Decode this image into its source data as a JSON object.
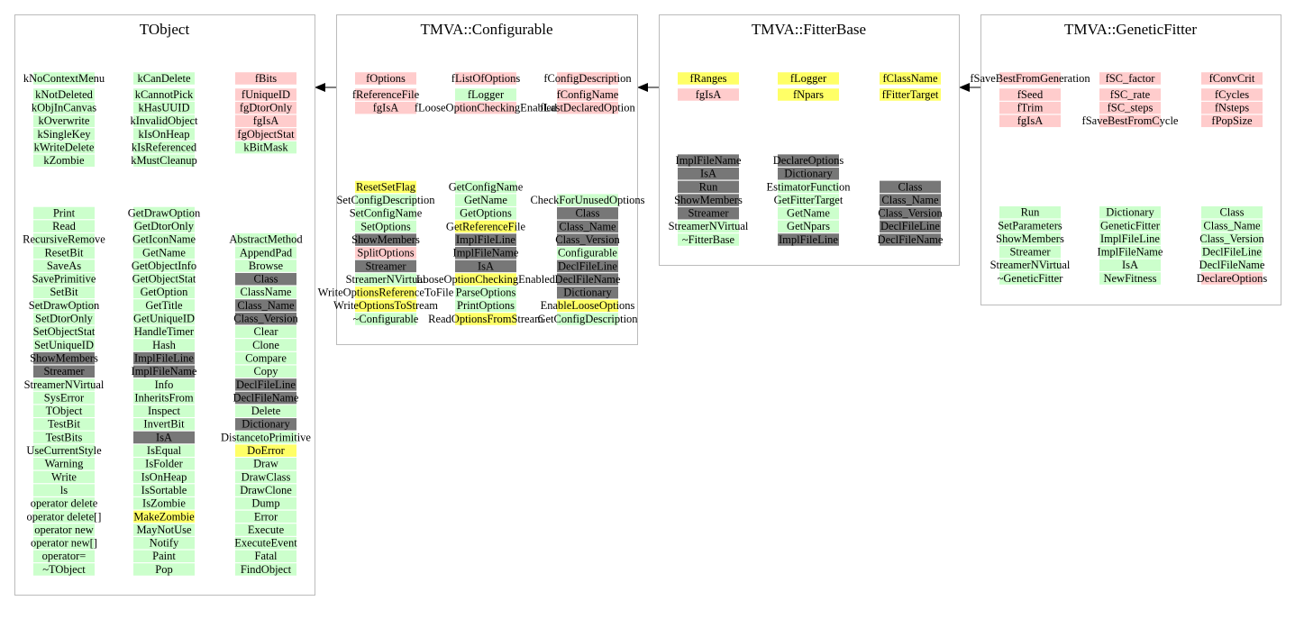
{
  "classes": [
    {
      "title": "TObject",
      "members": [
        [
          {
            "label": "kNoContextMenu",
            "color": "#ccffcc"
          },
          {
            "label": "kNotDeleted",
            "color": "#ccffcc"
          },
          {
            "label": "kObjInCanvas",
            "color": "#ccffcc"
          },
          {
            "label": "kOverwrite",
            "color": "#ccffcc"
          },
          {
            "label": "kSingleKey",
            "color": "#ccffcc"
          },
          {
            "label": "kWriteDelete",
            "color": "#ccffcc"
          },
          {
            "label": "kZombie",
            "color": "#ccffcc"
          }
        ],
        [
          {
            "label": "kCanDelete",
            "color": "#ccffcc"
          },
          {
            "label": "kCannotPick",
            "color": "#ccffcc"
          },
          {
            "label": "kHasUUID",
            "color": "#ccffcc"
          },
          {
            "label": "kInvalidObject",
            "color": "#ccffcc"
          },
          {
            "label": "kIsOnHeap",
            "color": "#ccffcc"
          },
          {
            "label": "kIsReferenced",
            "color": "#ccffcc"
          },
          {
            "label": "kMustCleanup",
            "color": "#ccffcc"
          }
        ],
        [
          {
            "label": "fBits",
            "color": "#ffcccc"
          },
          {
            "label": "fUniqueID",
            "color": "#ffcccc"
          },
          {
            "label": "fgDtorOnly",
            "color": "#ffcccc"
          },
          {
            "label": "fgIsA",
            "color": "#ffcccc"
          },
          {
            "label": "fgObjectStat",
            "color": "#ffcccc"
          },
          {
            "label": "kBitMask",
            "color": "#ccffcc"
          }
        ]
      ],
      "methods": [
        [
          {
            "label": "Print",
            "color": "#ccffcc"
          },
          {
            "label": "Read",
            "color": "#ccffcc"
          },
          {
            "label": "RecursiveRemove",
            "color": "#ccffcc"
          },
          {
            "label": "ResetBit",
            "color": "#ccffcc"
          },
          {
            "label": "SaveAs",
            "color": "#ccffcc"
          },
          {
            "label": "SavePrimitive",
            "color": "#ccffcc"
          },
          {
            "label": "SetBit",
            "color": "#ccffcc"
          },
          {
            "label": "SetDrawOption",
            "color": "#ccffcc"
          },
          {
            "label": "SetDtorOnly",
            "color": "#ccffcc"
          },
          {
            "label": "SetObjectStat",
            "color": "#ccffcc"
          },
          {
            "label": "SetUniqueID",
            "color": "#ccffcc"
          },
          {
            "label": "ShowMembers",
            "color": "#777777"
          },
          {
            "label": "Streamer",
            "color": "#777777"
          },
          {
            "label": "StreamerNVirtual",
            "color": "#ccffcc"
          },
          {
            "label": "SysError",
            "color": "#ccffcc"
          },
          {
            "label": "TObject",
            "color": "#ccffcc"
          },
          {
            "label": "TestBit",
            "color": "#ccffcc"
          },
          {
            "label": "TestBits",
            "color": "#ccffcc"
          },
          {
            "label": "UseCurrentStyle",
            "color": "#ccffcc"
          },
          {
            "label": "Warning",
            "color": "#ccffcc"
          },
          {
            "label": "Write",
            "color": "#ccffcc"
          },
          {
            "label": "ls",
            "color": "#ccffcc"
          },
          {
            "label": "operator delete",
            "color": "#ccffcc"
          },
          {
            "label": "operator delete[]",
            "color": "#ccffcc"
          },
          {
            "label": "operator new",
            "color": "#ccffcc"
          },
          {
            "label": "operator new[]",
            "color": "#ccffcc"
          },
          {
            "label": "operator=",
            "color": "#ccffcc"
          },
          {
            "label": "~TObject",
            "color": "#ccffcc"
          }
        ],
        [
          {
            "label": "GetDrawOption",
            "color": "#ccffcc"
          },
          {
            "label": "GetDtorOnly",
            "color": "#ccffcc"
          },
          {
            "label": "GetIconName",
            "color": "#ccffcc"
          },
          {
            "label": "GetName",
            "color": "#ccffcc"
          },
          {
            "label": "GetObjectInfo",
            "color": "#ccffcc"
          },
          {
            "label": "GetObjectStat",
            "color": "#ccffcc"
          },
          {
            "label": "GetOption",
            "color": "#ccffcc"
          },
          {
            "label": "GetTitle",
            "color": "#ccffcc"
          },
          {
            "label": "GetUniqueID",
            "color": "#ccffcc"
          },
          {
            "label": "HandleTimer",
            "color": "#ccffcc"
          },
          {
            "label": "Hash",
            "color": "#ccffcc"
          },
          {
            "label": "ImplFileLine",
            "color": "#777777"
          },
          {
            "label": "ImplFileName",
            "color": "#777777"
          },
          {
            "label": "Info",
            "color": "#ccffcc"
          },
          {
            "label": "InheritsFrom",
            "color": "#ccffcc"
          },
          {
            "label": "Inspect",
            "color": "#ccffcc"
          },
          {
            "label": "InvertBit",
            "color": "#ccffcc"
          },
          {
            "label": "IsA",
            "color": "#777777"
          },
          {
            "label": "IsEqual",
            "color": "#ccffcc"
          },
          {
            "label": "IsFolder",
            "color": "#ccffcc"
          },
          {
            "label": "IsOnHeap",
            "color": "#ccffcc"
          },
          {
            "label": "IsSortable",
            "color": "#ccffcc"
          },
          {
            "label": "IsZombie",
            "color": "#ccffcc"
          },
          {
            "label": "MakeZombie",
            "color": "#ffff66"
          },
          {
            "label": "MayNotUse",
            "color": "#ccffcc"
          },
          {
            "label": "Notify",
            "color": "#ccffcc"
          },
          {
            "label": "Paint",
            "color": "#ccffcc"
          },
          {
            "label": "Pop",
            "color": "#ccffcc"
          }
        ],
        [
          {
            "label": "AbstractMethod",
            "color": "#ccffcc"
          },
          {
            "label": "AppendPad",
            "color": "#ccffcc"
          },
          {
            "label": "Browse",
            "color": "#ccffcc"
          },
          {
            "label": "Class",
            "color": "#777777"
          },
          {
            "label": "ClassName",
            "color": "#ccffcc"
          },
          {
            "label": "Class_Name",
            "color": "#777777"
          },
          {
            "label": "Class_Version",
            "color": "#777777"
          },
          {
            "label": "Clear",
            "color": "#ccffcc"
          },
          {
            "label": "Clone",
            "color": "#ccffcc"
          },
          {
            "label": "Compare",
            "color": "#ccffcc"
          },
          {
            "label": "Copy",
            "color": "#ccffcc"
          },
          {
            "label": "DeclFileLine",
            "color": "#777777"
          },
          {
            "label": "DeclFileName",
            "color": "#777777"
          },
          {
            "label": "Delete",
            "color": "#ccffcc"
          },
          {
            "label": "Dictionary",
            "color": "#777777"
          },
          {
            "label": "DistancetoPrimitive",
            "color": "#ccffcc"
          },
          {
            "label": "DoError",
            "color": "#ffff66"
          },
          {
            "label": "Draw",
            "color": "#ccffcc"
          },
          {
            "label": "DrawClass",
            "color": "#ccffcc"
          },
          {
            "label": "DrawClone",
            "color": "#ccffcc"
          },
          {
            "label": "Dump",
            "color": "#ccffcc"
          },
          {
            "label": "Error",
            "color": "#ccffcc"
          },
          {
            "label": "Execute",
            "color": "#ccffcc"
          },
          {
            "label": "ExecuteEvent",
            "color": "#ccffcc"
          },
          {
            "label": "Fatal",
            "color": "#ccffcc"
          },
          {
            "label": "FindObject",
            "color": "#ccffcc"
          }
        ]
      ]
    },
    {
      "title": "TMVA::Configurable",
      "members": [
        [
          {
            "label": "fOptions",
            "color": "#ffcccc"
          },
          {
            "label": "fReferenceFile",
            "color": "#ffcccc"
          },
          {
            "label": "fgIsA",
            "color": "#ffcccc"
          }
        ],
        [
          {
            "label": "fListOfOptions",
            "color": "#ffcccc"
          },
          {
            "label": "fLogger",
            "color": "#ccffcc"
          },
          {
            "label": "fLooseOptionCheckingEnabled",
            "color": "#ffcccc"
          }
        ],
        [
          {
            "label": "fConfigDescription",
            "color": "#ffcccc"
          },
          {
            "label": "fConfigName",
            "color": "#ffcccc"
          },
          {
            "label": "fLastDeclaredOption",
            "color": "#ffcccc"
          }
        ]
      ],
      "methods": [
        [
          {
            "label": "ResetSetFlag",
            "color": "#ffff66"
          },
          {
            "label": "SetConfigDescription",
            "color": "#ccffcc"
          },
          {
            "label": "SetConfigName",
            "color": "#ccffcc"
          },
          {
            "label": "SetOptions",
            "color": "#ccffcc"
          },
          {
            "label": "ShowMembers",
            "color": "#777777"
          },
          {
            "label": "SplitOptions",
            "color": "#ffcccc"
          },
          {
            "label": "Streamer",
            "color": "#777777"
          },
          {
            "label": "StreamerNVirtual",
            "color": "#ccffcc"
          },
          {
            "label": "WriteOptionsReferenceToFile",
            "color": "#ffff66"
          },
          {
            "label": "WriteOptionsToStream",
            "color": "#ffff66"
          },
          {
            "label": "~Configurable",
            "color": "#ccffcc"
          }
        ],
        [
          {
            "label": "GetConfigName",
            "color": "#ccffcc"
          },
          {
            "label": "GetName",
            "color": "#ccffcc"
          },
          {
            "label": "GetOptions",
            "color": "#ccffcc"
          },
          {
            "label": "GetReferenceFile",
            "color": "#ffff66"
          },
          {
            "label": "ImplFileLine",
            "color": "#777777"
          },
          {
            "label": "ImplFileName",
            "color": "#777777"
          },
          {
            "label": "IsA",
            "color": "#777777"
          },
          {
            "label": "LooseOptionCheckingEnabled",
            "color": "#ffff66"
          },
          {
            "label": "ParseOptions",
            "color": "#ccffcc"
          },
          {
            "label": "PrintOptions",
            "color": "#ccffcc"
          },
          {
            "label": "ReadOptionsFromStream",
            "color": "#ffff66"
          }
        ],
        [
          {
            "label": "CheckForUnusedOptions",
            "color": "#ccffcc"
          },
          {
            "label": "Class",
            "color": "#777777"
          },
          {
            "label": "Class_Name",
            "color": "#777777"
          },
          {
            "label": "Class_Version",
            "color": "#777777"
          },
          {
            "label": "Configurable",
            "color": "#ccffcc"
          },
          {
            "label": "DeclFileLine",
            "color": "#777777"
          },
          {
            "label": "DeclFileName",
            "color": "#777777"
          },
          {
            "label": "Dictionary",
            "color": "#777777"
          },
          {
            "label": "EnableLooseOptions",
            "color": "#ffff66"
          },
          {
            "label": "GetConfigDescription",
            "color": "#ccffcc"
          }
        ]
      ]
    },
    {
      "title": "TMVA::FitterBase",
      "members": [
        [
          {
            "label": "fRanges",
            "color": "#ffff66"
          },
          {
            "label": "fgIsA",
            "color": "#ffcccc"
          }
        ],
        [
          {
            "label": "fLogger",
            "color": "#ffff66"
          },
          {
            "label": "fNpars",
            "color": "#ffff66"
          }
        ],
        [
          {
            "label": "fClassName",
            "color": "#ffff66"
          },
          {
            "label": "fFitterTarget",
            "color": "#ffff66"
          }
        ]
      ],
      "methods": [
        [
          {
            "label": "ImplFileName",
            "color": "#777777"
          },
          {
            "label": "IsA",
            "color": "#777777"
          },
          {
            "label": "Run",
            "color": "#777777"
          },
          {
            "label": "ShowMembers",
            "color": "#777777"
          },
          {
            "label": "Streamer",
            "color": "#777777"
          },
          {
            "label": "StreamerNVirtual",
            "color": "#ccffcc"
          },
          {
            "label": "~FitterBase",
            "color": "#ccffcc"
          }
        ],
        [
          {
            "label": "DeclareOptions",
            "color": "#777777"
          },
          {
            "label": "Dictionary",
            "color": "#777777"
          },
          {
            "label": "EstimatorFunction",
            "color": "#ccffcc"
          },
          {
            "label": "GetFitterTarget",
            "color": "#ccffcc"
          },
          {
            "label": "GetName",
            "color": "#ccffcc"
          },
          {
            "label": "GetNpars",
            "color": "#ccffcc"
          },
          {
            "label": "ImplFileLine",
            "color": "#777777"
          }
        ],
        [
          {
            "label": "Class",
            "color": "#777777"
          },
          {
            "label": "Class_Name",
            "color": "#777777"
          },
          {
            "label": "Class_Version",
            "color": "#777777"
          },
          {
            "label": "DeclFileLine",
            "color": "#777777"
          },
          {
            "label": "DeclFileName",
            "color": "#777777"
          }
        ]
      ]
    },
    {
      "title": "TMVA::GeneticFitter",
      "members": [
        [
          {
            "label": "fSaveBestFromGeneration",
            "color": "#ffcccc"
          },
          {
            "label": "fSeed",
            "color": "#ffcccc"
          },
          {
            "label": "fTrim",
            "color": "#ffcccc"
          },
          {
            "label": "fgIsA",
            "color": "#ffcccc"
          }
        ],
        [
          {
            "label": "fSC_factor",
            "color": "#ffcccc"
          },
          {
            "label": "fSC_rate",
            "color": "#ffcccc"
          },
          {
            "label": "fSC_steps",
            "color": "#ffcccc"
          },
          {
            "label": "fSaveBestFromCycle",
            "color": "#ffcccc"
          }
        ],
        [
          {
            "label": "fConvCrit",
            "color": "#ffcccc"
          },
          {
            "label": "fCycles",
            "color": "#ffcccc"
          },
          {
            "label": "fNsteps",
            "color": "#ffcccc"
          },
          {
            "label": "fPopSize",
            "color": "#ffcccc"
          }
        ]
      ],
      "methods": [
        [
          {
            "label": "Run",
            "color": "#ccffcc"
          },
          {
            "label": "SetParameters",
            "color": "#ccffcc"
          },
          {
            "label": "ShowMembers",
            "color": "#ccffcc"
          },
          {
            "label": "Streamer",
            "color": "#ccffcc"
          },
          {
            "label": "StreamerNVirtual",
            "color": "#ccffcc"
          },
          {
            "label": "~GeneticFitter",
            "color": "#ccffcc"
          }
        ],
        [
          {
            "label": "Dictionary",
            "color": "#ccffcc"
          },
          {
            "label": "GeneticFitter",
            "color": "#ccffcc"
          },
          {
            "label": "ImplFileLine",
            "color": "#ccffcc"
          },
          {
            "label": "ImplFileName",
            "color": "#ccffcc"
          },
          {
            "label": "IsA",
            "color": "#ccffcc"
          },
          {
            "label": "NewFitness",
            "color": "#ccffcc"
          }
        ],
        [
          {
            "label": "Class",
            "color": "#ccffcc"
          },
          {
            "label": "Class_Name",
            "color": "#ccffcc"
          },
          {
            "label": "Class_Version",
            "color": "#ccffcc"
          },
          {
            "label": "DeclFileLine",
            "color": "#ccffcc"
          },
          {
            "label": "DeclFileName",
            "color": "#ccffcc"
          },
          {
            "label": "DeclareOptions",
            "color": "#ffcccc"
          }
        ]
      ]
    }
  ]
}
